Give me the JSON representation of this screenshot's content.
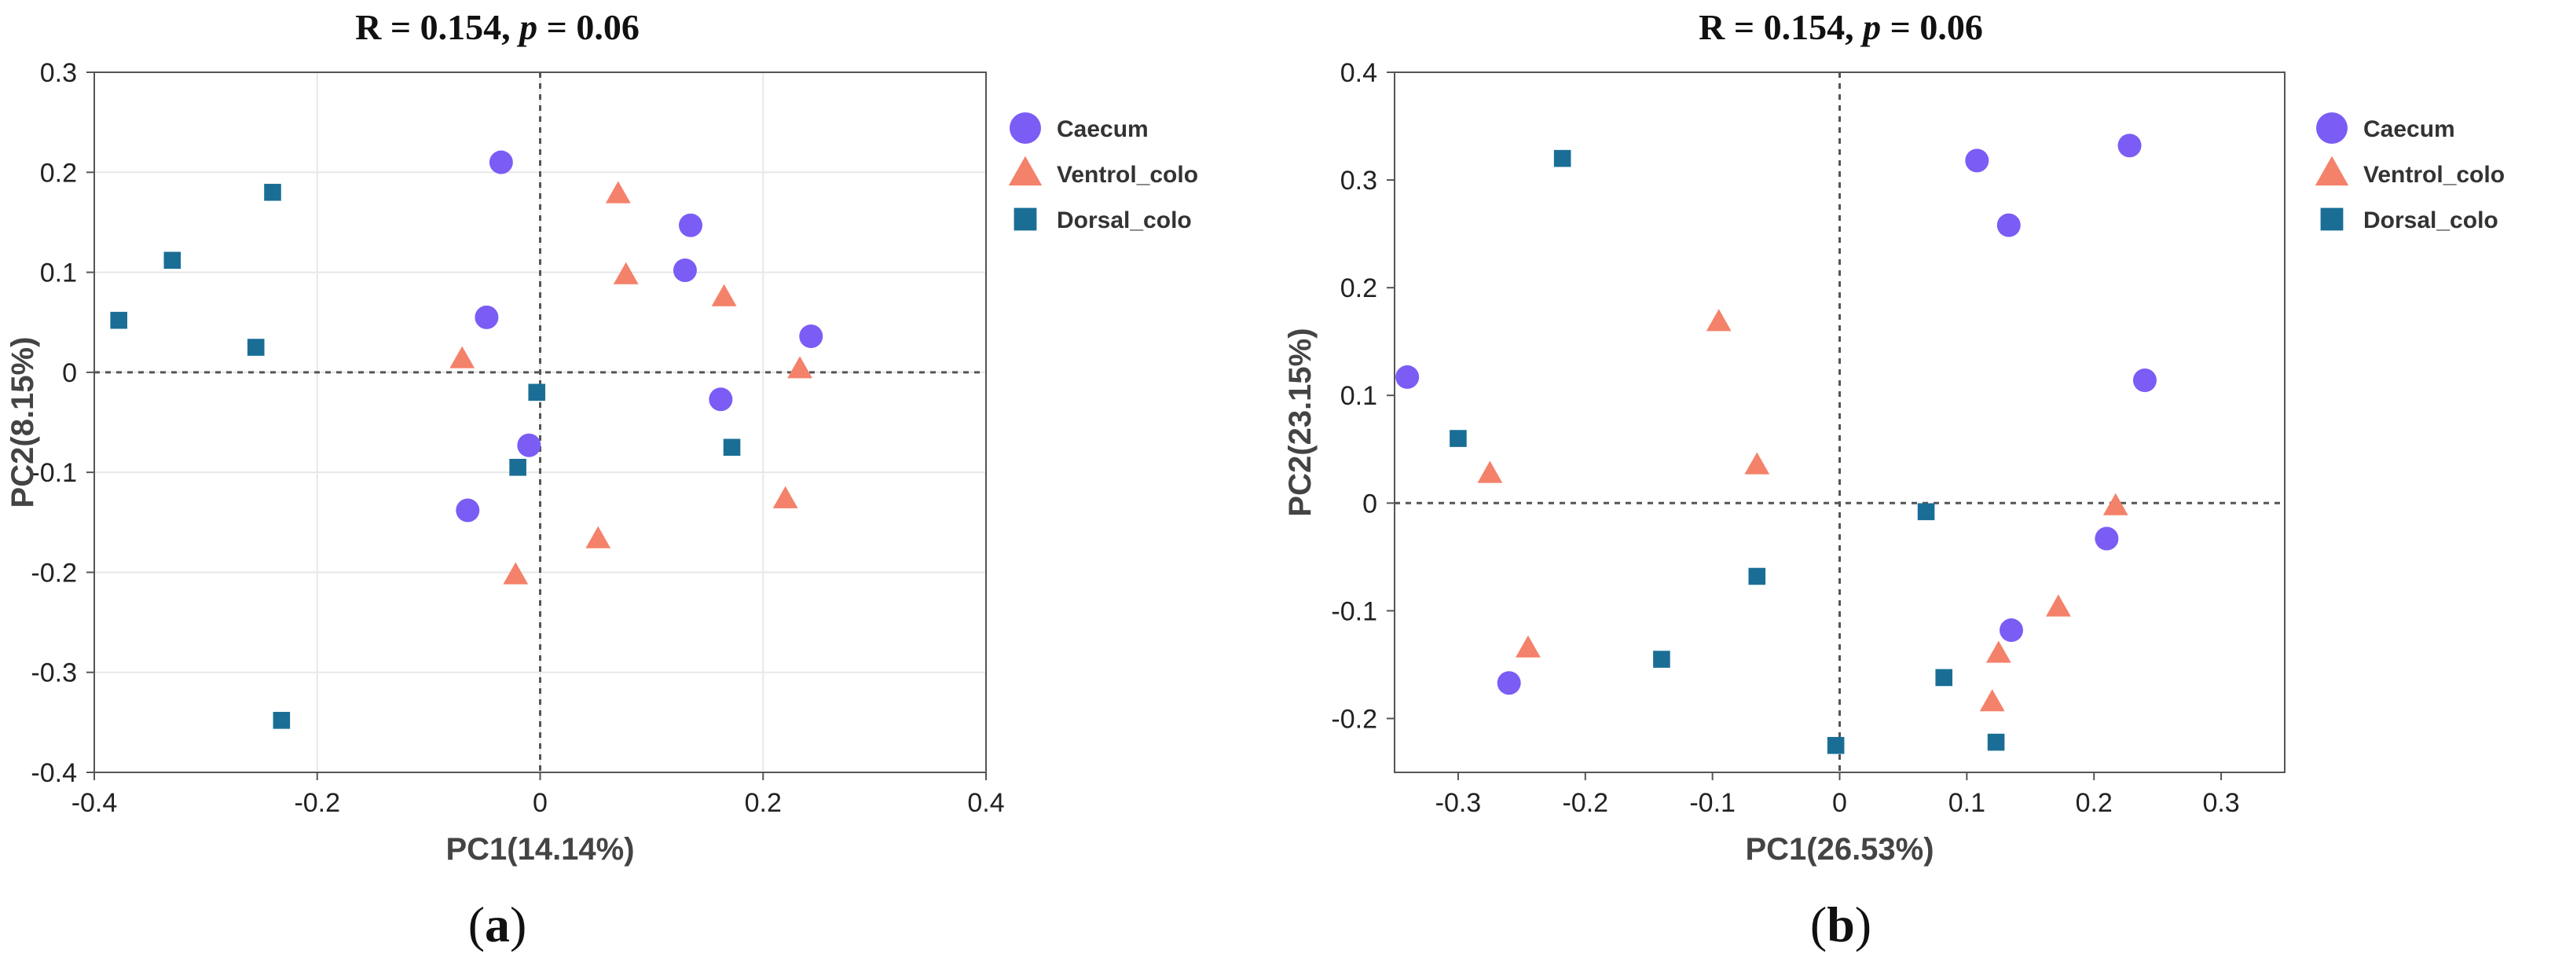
{
  "chart_data": [
    {
      "type": "scatter",
      "panel_label": "a",
      "title": "R = 0.154, p = 0.06",
      "title_parts": {
        "stat": "R = 0.154, ",
        "p_symbol": "p",
        "p_value": " = 0.06"
      },
      "xlabel": "PC1(14.14%)",
      "ylabel": "PC2(8.15%)",
      "xlim": [
        -0.4,
        0.4
      ],
      "ylim": [
        -0.4,
        0.3
      ],
      "xticks": [
        -0.4,
        -0.2,
        0,
        0.2,
        0.4
      ],
      "xtick_labels": [
        "-0.4",
        "-0.2",
        "0",
        "0.2",
        "0.4"
      ],
      "yticks": [
        -0.4,
        -0.3,
        -0.2,
        -0.1,
        0,
        0.1,
        0.2,
        0.3
      ],
      "ytick_labels": [
        "-0.4",
        "-0.3",
        "-0.2",
        "-0.1",
        "0",
        "0.1",
        "0.2",
        "0.3"
      ],
      "grid": true,
      "reference_lines": {
        "x": 0,
        "y": 0,
        "style": "dashed"
      },
      "legend_position": "right",
      "series": [
        {
          "name": "Caecum",
          "legend_label": "Caecum",
          "marker": "circle",
          "color": "#7B5CF5",
          "points": [
            [
              -0.035,
              0.21
            ],
            [
              0.135,
              0.147
            ],
            [
              0.13,
              0.102
            ],
            [
              -0.048,
              0.055
            ],
            [
              0.243,
              0.036
            ],
            [
              0.162,
              -0.027
            ],
            [
              -0.01,
              -0.073
            ],
            [
              -0.065,
              -0.138
            ]
          ]
        },
        {
          "name": "Ventrol_colon",
          "legend_label": "Ventrol_colo",
          "marker": "triangle",
          "color": "#F4816A",
          "points": [
            [
              0.07,
              0.178
            ],
            [
              0.077,
              0.097
            ],
            [
              0.165,
              0.075
            ],
            [
              -0.07,
              0.013
            ],
            [
              0.233,
              0.003
            ],
            [
              0.22,
              -0.127
            ],
            [
              0.052,
              -0.167
            ],
            [
              -0.022,
              -0.203
            ]
          ]
        },
        {
          "name": "Dorsal_colon",
          "legend_label": "Dorsal_colo",
          "marker": "square",
          "color": "#1A6E96",
          "points": [
            [
              -0.24,
              0.18
            ],
            [
              -0.33,
              0.112
            ],
            [
              -0.378,
              0.052
            ],
            [
              -0.255,
              0.025
            ],
            [
              -0.003,
              -0.02
            ],
            [
              0.172,
              -0.075
            ],
            [
              -0.02,
              -0.095
            ],
            [
              -0.232,
              -0.348
            ]
          ]
        }
      ]
    },
    {
      "type": "scatter",
      "panel_label": "b",
      "title": "R = 0.154, p = 0.06",
      "title_parts": {
        "stat": "R = 0.154, ",
        "p_symbol": "p",
        "p_value": " = 0.06"
      },
      "xlabel": "PC1(26.53%)",
      "ylabel": "PC2(23.15%)",
      "xlim": [
        -0.35,
        0.35
      ],
      "ylim": [
        -0.25,
        0.4
      ],
      "xticks": [
        -0.3,
        -0.2,
        -0.1,
        0,
        0.1,
        0.2,
        0.3
      ],
      "xtick_labels": [
        "-0.3",
        "-0.2",
        "-0.1",
        "0",
        "0.1",
        "0.2",
        "0.3"
      ],
      "yticks": [
        -0.2,
        -0.1,
        0,
        0.1,
        0.2,
        0.3,
        0.4
      ],
      "ytick_labels": [
        "-0.2",
        "-0.1",
        "0",
        "0.1",
        "0.2",
        "0.3",
        "0.4"
      ],
      "grid": false,
      "reference_lines": {
        "x": 0,
        "y": 0,
        "style": "dashed"
      },
      "legend_position": "right",
      "series": [
        {
          "name": "Caecum",
          "legend_label": "Caecum",
          "marker": "circle",
          "color": "#7B5CF5",
          "points": [
            [
              0.108,
              0.318
            ],
            [
              0.228,
              0.332
            ],
            [
              0.133,
              0.258
            ],
            [
              -0.34,
              0.117
            ],
            [
              0.24,
              0.114
            ],
            [
              0.21,
              -0.033
            ],
            [
              0.135,
              -0.118
            ],
            [
              -0.26,
              -0.167
            ]
          ]
        },
        {
          "name": "Ventrol_colon",
          "legend_label": "Ventrol_colo",
          "marker": "triangle",
          "color": "#F4816A",
          "points": [
            [
              -0.095,
              0.168
            ],
            [
              -0.275,
              0.027
            ],
            [
              -0.065,
              0.035
            ],
            [
              0.217,
              -0.003
            ],
            [
              0.172,
              -0.097
            ],
            [
              0.125,
              -0.14
            ],
            [
              0.12,
              -0.185
            ],
            [
              -0.245,
              -0.135
            ]
          ]
        },
        {
          "name": "Dorsal_colon",
          "legend_label": "Dorsal_colo",
          "marker": "square",
          "color": "#1A6E96",
          "points": [
            [
              -0.218,
              0.32
            ],
            [
              -0.3,
              0.06
            ],
            [
              0.068,
              -0.008
            ],
            [
              -0.065,
              -0.068
            ],
            [
              -0.14,
              -0.145
            ],
            [
              0.082,
              -0.162
            ],
            [
              -0.003,
              -0.225
            ],
            [
              0.123,
              -0.222
            ]
          ]
        }
      ]
    }
  ]
}
